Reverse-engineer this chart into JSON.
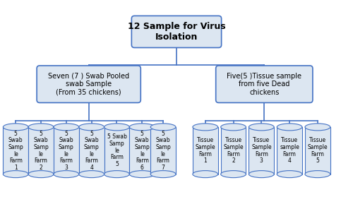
{
  "title_box": "12 Sample for Virus\nIsolation",
  "left_box": "Seven (7 ) Swab Pooled\nswab Sample\n(From 35 chickens)",
  "right_box": "Five(5 )Tissue sample\nfrom five Dead\nchickens",
  "swab_labels": [
    "5\nSwab\nSamp\nle\nFarm\n1",
    "5\nSwab\nSamp\nle\nFarm\n2",
    "5\nSwab\nSamp\nle\nFarm\n3",
    "5\nSwab\nSamp\nle\nFarm\n4",
    "5 Swab\nSamp\nle\nFarm\n5",
    "5\nSwab\nSamp\nle\nFarm\n6",
    "5\nSwab\nSamp\nle\nFarm\n7"
  ],
  "tissue_labels": [
    "Tissue\nSample\nFarm\n1",
    "Tissue\nSample\nFarm\n2",
    "Tissue\nSample\nFarm\n3",
    "Tissue\nsample\nFarm\n4",
    "Tissue\nSample\nFarm\n5"
  ],
  "box_face_color": "#dce6f1",
  "box_edge_color": "#4472c4",
  "cylinder_face_color": "#dce6f1",
  "cylinder_edge_color": "#4472c4",
  "line_color": "#4472c4",
  "bg_color": "#ffffff",
  "title_fontsize": 9,
  "label_fontsize": 5.5
}
